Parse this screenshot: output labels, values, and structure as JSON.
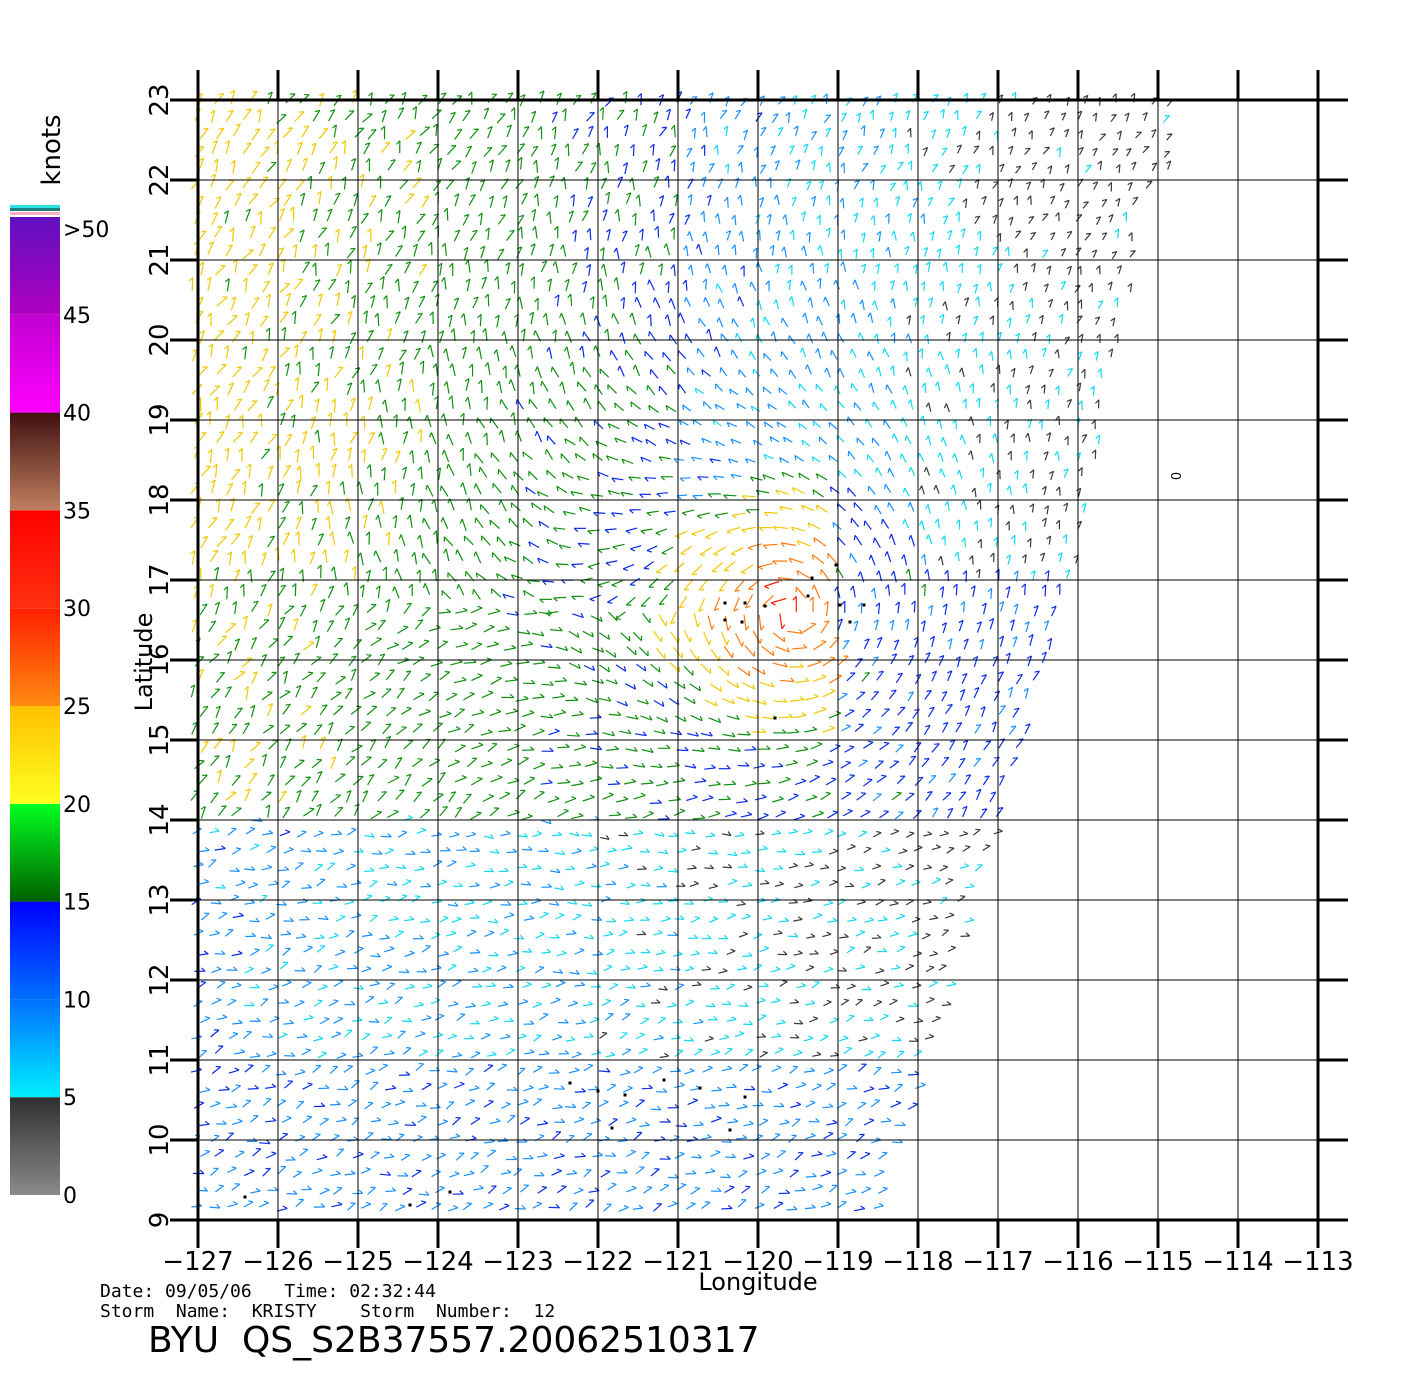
{
  "map": {
    "x_axis_label": "Longitude",
    "y_axis_label": "Latitude",
    "lon_ticks": [
      "-127",
      "-126",
      "-125",
      "-124",
      "-123",
      "-122",
      "-121",
      "-120",
      "-119",
      "-118",
      "-117",
      "-116",
      "-115",
      "-114",
      "-113"
    ],
    "lat_ticks": [
      "9",
      "10",
      "11",
      "12",
      "13",
      "14",
      "15",
      "16",
      "17",
      "18",
      "19",
      "20",
      "21",
      "22",
      "23"
    ],
    "lon_range": [
      -127,
      -113
    ],
    "lat_range": [
      9,
      23
    ],
    "stray_label": "0",
    "wind_field": "QuikSCAT wind vectors over the eastern Pacific, color-coded by speed"
  },
  "colorbar": {
    "unit_label": "knots",
    "tick_labels": [
      ">50",
      "45",
      "40",
      "35",
      "30",
      "25",
      "20",
      "15",
      "10",
      "5",
      "0"
    ],
    "bands": [
      {
        "from": 0,
        "to": 5,
        "colors": [
          "#8a8a8a",
          "#303030"
        ]
      },
      {
        "from": 5,
        "to": 10,
        "colors": [
          "#00f0ff",
          "#0070ff"
        ]
      },
      {
        "from": 10,
        "to": 15,
        "colors": [
          "#0070ff",
          "#0000ff"
        ]
      },
      {
        "from": 15,
        "to": 20,
        "colors": [
          "#006000",
          "#00ff20"
        ]
      },
      {
        "from": 20,
        "to": 25,
        "colors": [
          "#ffff20",
          "#ffc000"
        ]
      },
      {
        "from": 25,
        "to": 30,
        "colors": [
          "#ff8a10",
          "#ff2000"
        ]
      },
      {
        "from": 30,
        "to": 35,
        "colors": [
          "#ff3010",
          "#ff0000"
        ]
      },
      {
        "from": 35,
        "to": 40,
        "colors": [
          "#c08060",
          "#401010"
        ]
      },
      {
        "from": 40,
        "to": 45,
        "colors": [
          "#ff00ff",
          "#c000d0"
        ]
      },
      {
        "from": 45,
        "to": 50,
        "colors": [
          "#b000c0",
          "#6010c0"
        ]
      }
    ]
  },
  "footer": {
    "date_line": "Date: 09/05/06   Time: 02:32:44",
    "storm_line": "Storm  Name:  KRISTY    Storm  Number:  12",
    "title": "BYU  QS_S2B37557.20062510317"
  }
}
